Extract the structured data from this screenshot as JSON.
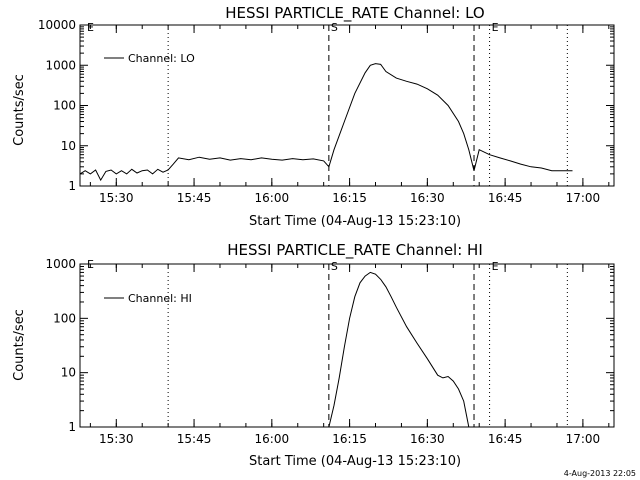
{
  "footer": {
    "timestamp": "4-Aug-2013 22:05"
  },
  "chart_data": [
    {
      "type": "line",
      "title": "HESSI PARTICLE_RATE Channel: LO",
      "xlabel": "Start Time (04-Aug-13 15:23:10)",
      "ylabel": "Counts/sec",
      "yscale": "log",
      "xlim": [
        "15:23",
        "17:06"
      ],
      "ylim": [
        1,
        10000
      ],
      "xticks": [
        "15:30",
        "15:45",
        "16:00",
        "16:15",
        "16:30",
        "16:45",
        "17:00"
      ],
      "yticks": [
        "1",
        "10",
        "100",
        "1000",
        "10000"
      ],
      "legend": {
        "label": "Channel: LO",
        "position": "top-left"
      },
      "markers": [
        {
          "label": "",
          "time": "15:40",
          "style": "dotted"
        },
        {
          "label": "S",
          "time": "16:11",
          "style": "dashed"
        },
        {
          "label": "",
          "time": "16:39",
          "style": "dashed"
        },
        {
          "label": "E",
          "time": "16:42",
          "style": "dotted"
        },
        {
          "label": "",
          "time": "16:57",
          "style": "dotted"
        }
      ],
      "corner_labels": [
        "E"
      ],
      "series": [
        {
          "x": [
            "15:23",
            "15:24",
            "15:25",
            "15:26",
            "15:27",
            "15:28",
            "15:29",
            "15:30",
            "15:31",
            "15:32",
            "15:33",
            "15:34",
            "15:35",
            "15:36",
            "15:37",
            "15:38",
            "15:39",
            "15:40",
            "15:41",
            "15:42",
            "15:44",
            "15:46",
            "15:48",
            "15:50",
            "15:52",
            "15:54",
            "15:56",
            "15:58",
            "16:00",
            "16:02",
            "16:04",
            "16:06",
            "16:08",
            "16:10",
            "16:11",
            "16:12",
            "16:14",
            "16:16",
            "16:18",
            "16:19",
            "16:20",
            "16:21",
            "16:22",
            "16:24",
            "16:26",
            "16:28",
            "16:30",
            "16:32",
            "16:34",
            "16:36",
            "16:37",
            "16:38",
            "16:39",
            "16:40",
            "16:42",
            "16:44",
            "16:46",
            "16:48",
            "16:50",
            "16:52",
            "16:54",
            "16:56",
            "16:58"
          ],
          "y": [
            2,
            2.4,
            2,
            2.5,
            1.4,
            2.3,
            2.5,
            2,
            2.4,
            2,
            2.6,
            2.1,
            2.4,
            2.5,
            2,
            2.6,
            2.2,
            2.5,
            3.5,
            5,
            4.5,
            5.2,
            4.6,
            5,
            4.4,
            4.8,
            4.5,
            5,
            4.6,
            4.4,
            4.8,
            4.5,
            4.7,
            4.2,
            3,
            8,
            40,
            200,
            650,
            1000,
            1100,
            1050,
            700,
            480,
            400,
            340,
            260,
            180,
            100,
            40,
            20,
            8,
            2.4,
            8,
            6,
            5,
            4.2,
            3.5,
            3,
            2.8,
            2.4,
            2.4,
            2.4
          ]
        }
      ]
    },
    {
      "type": "line",
      "title": "HESSI PARTICLE_RATE Channel: HI",
      "xlabel": "Start Time (04-Aug-13 15:23:10)",
      "ylabel": "Counts/sec",
      "yscale": "log",
      "xlim": [
        "15:23",
        "17:06"
      ],
      "ylim": [
        1,
        1000
      ],
      "xticks": [
        "15:30",
        "15:45",
        "16:00",
        "16:15",
        "16:30",
        "16:45",
        "17:00"
      ],
      "yticks": [
        "1",
        "10",
        "100",
        "1000"
      ],
      "legend": {
        "label": "Channel: HI",
        "position": "top-left"
      },
      "markers": [
        {
          "label": "",
          "time": "15:40",
          "style": "dotted"
        },
        {
          "label": "S",
          "time": "16:11",
          "style": "dashed"
        },
        {
          "label": "",
          "time": "16:39",
          "style": "dashed"
        },
        {
          "label": "E",
          "time": "16:42",
          "style": "dotted"
        },
        {
          "label": "",
          "time": "16:57",
          "style": "dotted"
        }
      ],
      "corner_labels": [
        "E"
      ],
      "series": [
        {
          "x": [
            "16:11",
            "16:12",
            "16:13",
            "16:14",
            "16:15",
            "16:16",
            "16:17",
            "16:18",
            "16:19",
            "16:20",
            "16:21",
            "16:22",
            "16:23",
            "16:24",
            "16:26",
            "16:28",
            "16:30",
            "16:32",
            "16:33",
            "16:34",
            "16:35",
            "16:36",
            "16:37",
            "16:38"
          ],
          "y": [
            1,
            2.5,
            8,
            30,
            100,
            250,
            450,
            600,
            700,
            650,
            520,
            380,
            250,
            160,
            70,
            35,
            18,
            9,
            8,
            8.5,
            7,
            5,
            3,
            1
          ]
        }
      ]
    }
  ]
}
